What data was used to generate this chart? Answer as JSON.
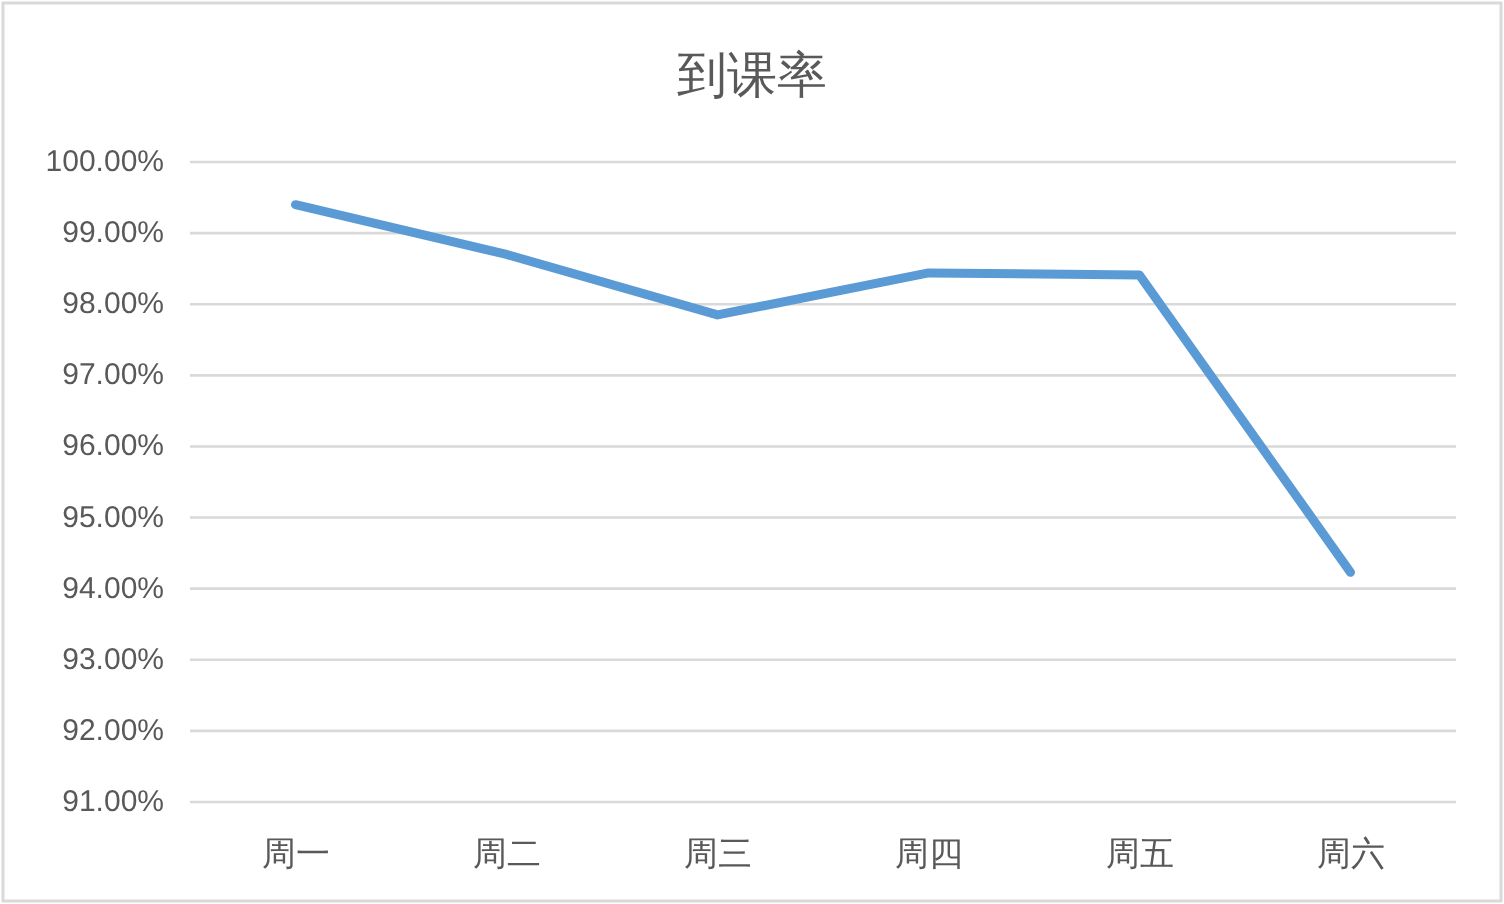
{
  "chart_data": {
    "type": "line",
    "title": "到课率",
    "categories": [
      "周一",
      "周二",
      "周三",
      "周四",
      "周五",
      "周六"
    ],
    "series": [
      {
        "color": "#5b9bd5",
        "values": [
          99.4,
          98.7,
          97.85,
          98.44,
          98.41,
          94.23
        ]
      }
    ],
    "ylim": [
      91,
      100
    ],
    "yticks": [
      {
        "value": 91,
        "label": "91.00%"
      },
      {
        "value": 92,
        "label": "92.00%"
      },
      {
        "value": 93,
        "label": "93.00%"
      },
      {
        "value": 94,
        "label": "94.00%"
      },
      {
        "value": 95,
        "label": "95.00%"
      },
      {
        "value": 96,
        "label": "96.00%"
      },
      {
        "value": 97,
        "label": "97.00%"
      },
      {
        "value": 98,
        "label": "98.00%"
      },
      {
        "value": 99,
        "label": "99.00%"
      },
      {
        "value": 100,
        "label": "100.00%"
      }
    ],
    "grid": "y",
    "line_style": "solid"
  }
}
